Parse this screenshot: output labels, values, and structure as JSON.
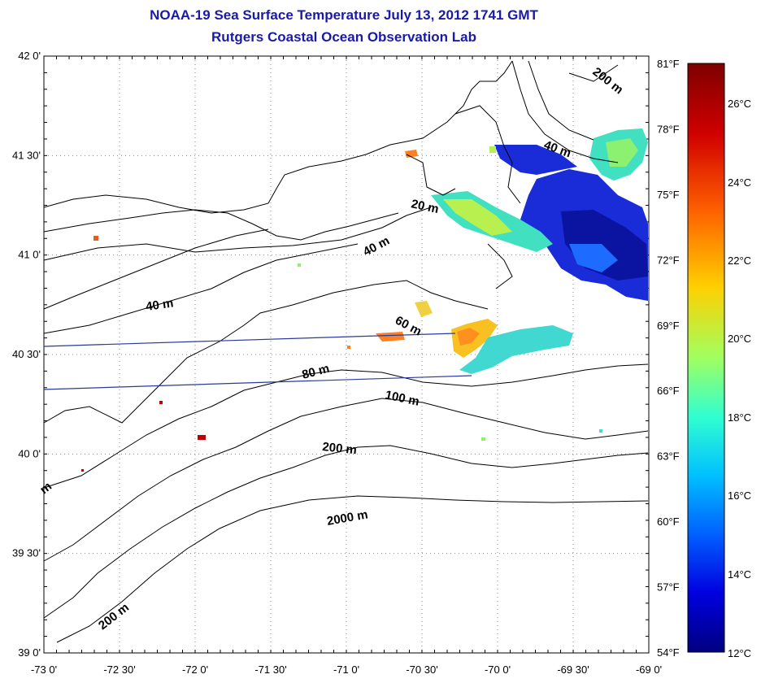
{
  "title": "NOAA-19 Sea Surface Temperature July 13, 2012 1741 GMT",
  "subtitle": "Rutgers Coastal Ocean Observation Lab",
  "lat_ticks": [
    "42 0'",
    "41 30'",
    "41 0'",
    "40 30'",
    "40 0'",
    "39 30'",
    "39 0'"
  ],
  "lon_ticks": [
    "-73 0'",
    "-72 30'",
    "-72 0'",
    "-71 30'",
    "-71 0'",
    "-70 30'",
    "-70 0'",
    "-69 30'",
    "-69 0'"
  ],
  "colorbar": {
    "f_ticks": [
      "81°F",
      "78°F",
      "75°F",
      "72°F",
      "69°F",
      "66°F",
      "63°F",
      "60°F",
      "57°F",
      "54°F"
    ],
    "c_ticks": [
      "26°C",
      "24°C",
      "22°C",
      "20°C",
      "18°C",
      "16°C",
      "14°C",
      "12°C"
    ],
    "colors": [
      "#7f0000",
      "#ff0000",
      "#ff8000",
      "#ffff00",
      "#80ff80",
      "#00ffff",
      "#0080ff",
      "#0000ff",
      "#00007f"
    ]
  },
  "contour_labels": [
    "200 m",
    "40 m",
    "20 m",
    "40 m",
    "40 m",
    "60 m",
    "80 m",
    "100 m",
    "200 m",
    "2000 m",
    "200 m",
    "m"
  ]
}
